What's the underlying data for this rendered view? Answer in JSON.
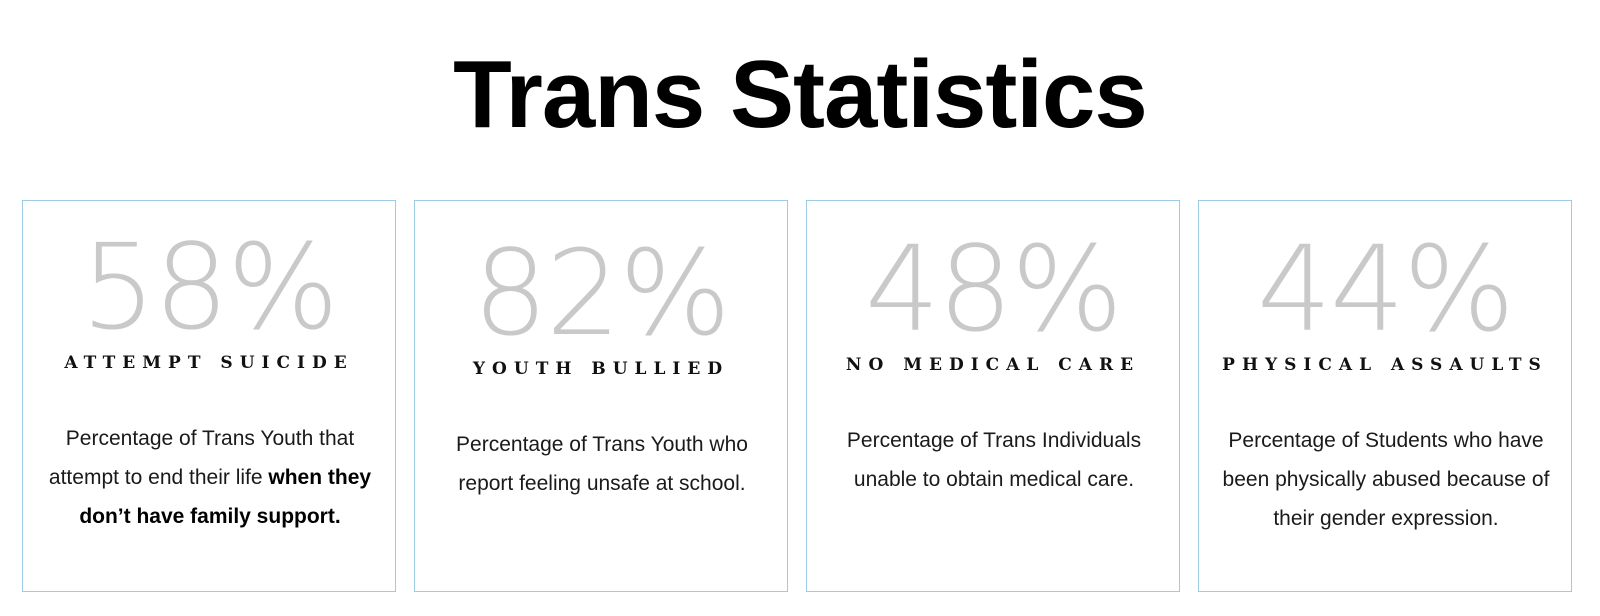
{
  "page": {
    "title": "Trans Statistics"
  },
  "colors": {
    "card_border": "#9ccbe3",
    "stat_value": "#c9c9c9",
    "text": "#111111"
  },
  "stats": [
    {
      "value": "58%",
      "label": "ATTEMPT SUICIDE",
      "desc_plain": "Percentage of Trans Youth that attempt to end their life ",
      "desc_bold": "when they don’t have family support."
    },
    {
      "value": "82%",
      "label": "YOUTH BULLIED",
      "desc_plain": "Percentage of Trans Youth who report feeling unsafe at school.",
      "desc_bold": ""
    },
    {
      "value": "48%",
      "label": "NO MEDICAL CARE",
      "desc_plain": "Percentage of Trans Individuals unable to obtain medical care.",
      "desc_bold": ""
    },
    {
      "value": "44%",
      "label": "PHYSICAL ASSAULTS",
      "desc_plain": "Percentage of Students who have been physically abused because of their gender expression.",
      "desc_bold": ""
    }
  ]
}
